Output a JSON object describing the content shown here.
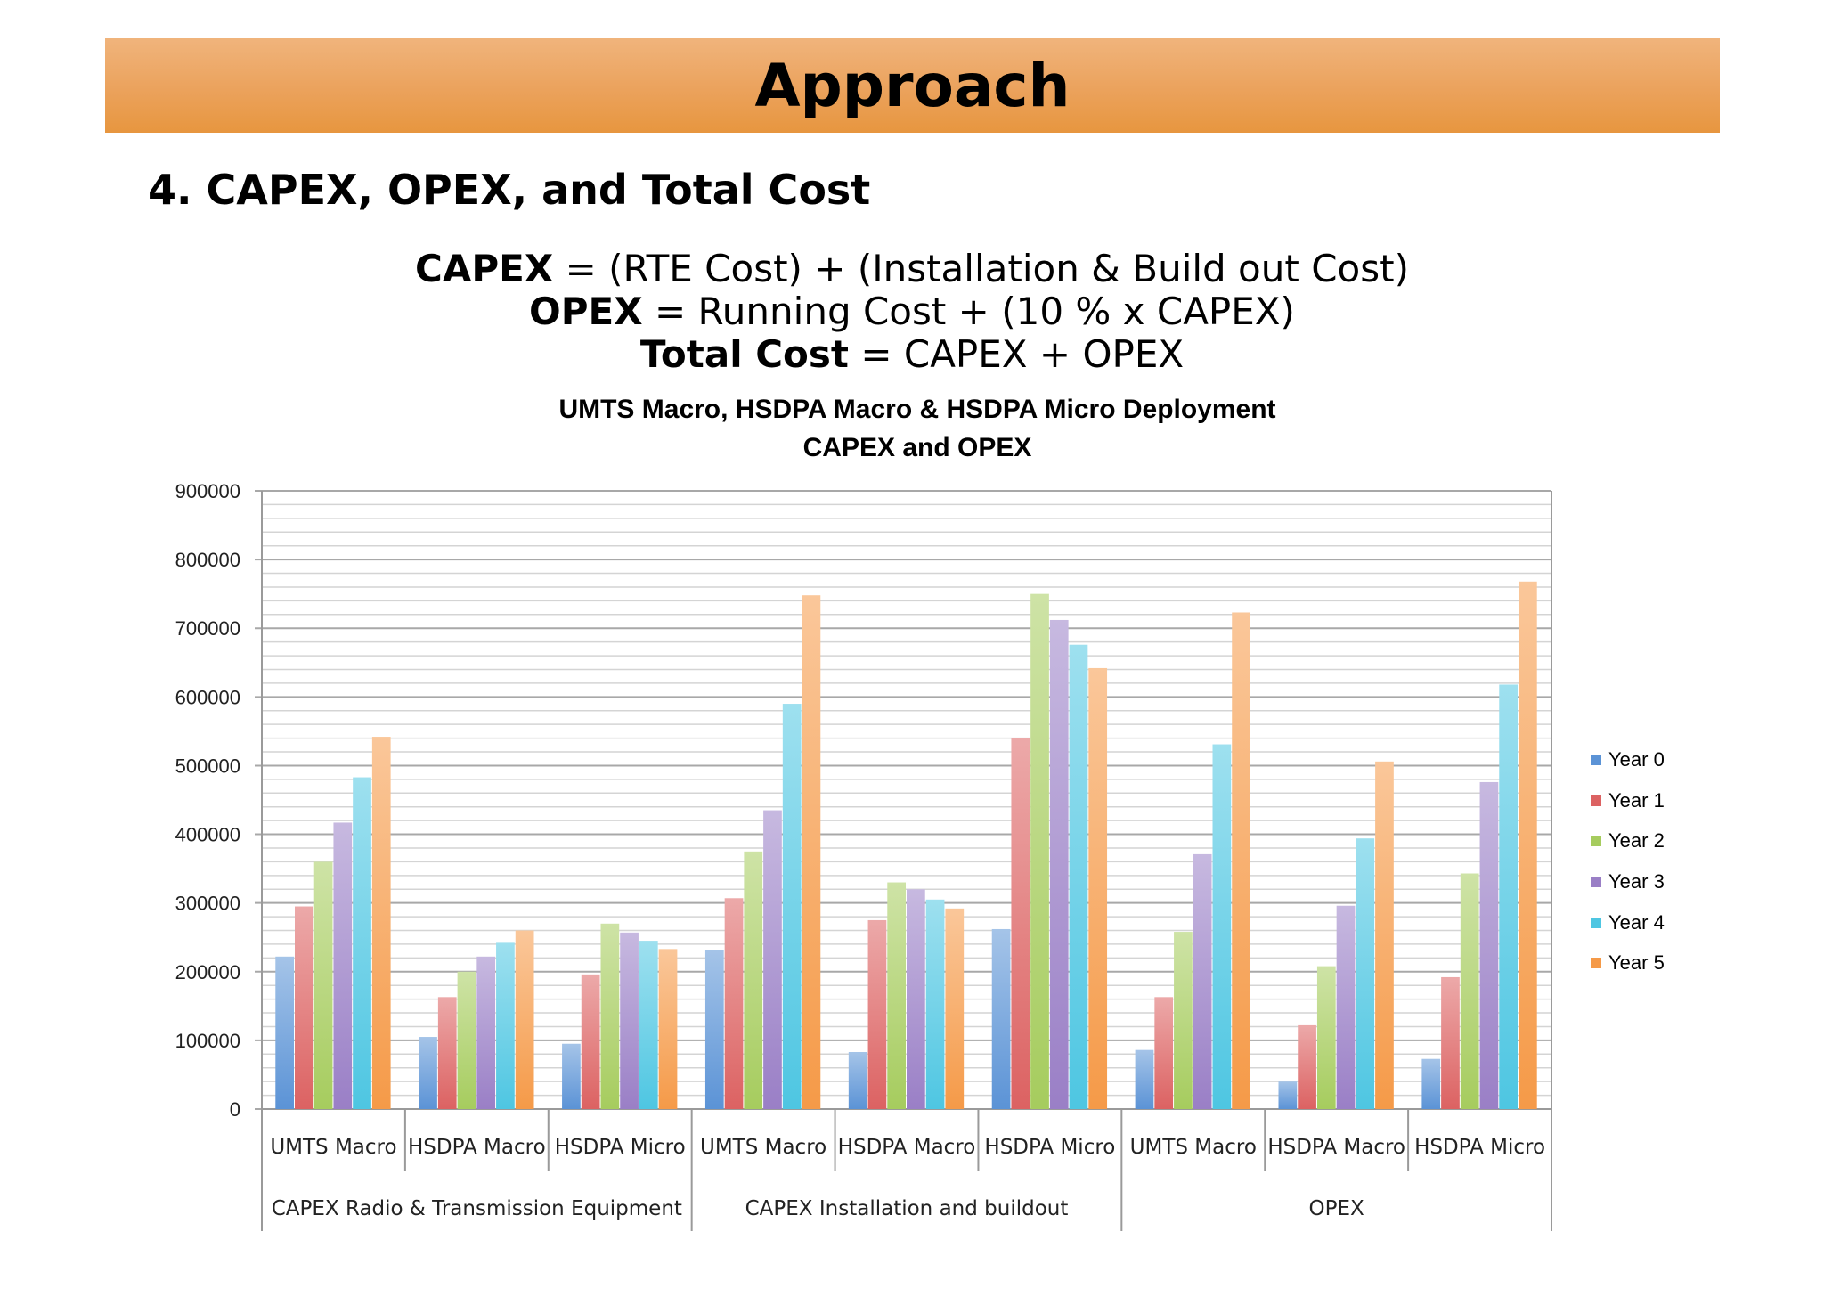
{
  "slide": {
    "title": "Approach",
    "subtitle": "4. CAPEX, OPEX, and Total Cost",
    "formulas": [
      {
        "term": "CAPEX",
        "rest": " = (RTE Cost) + (Installation & Build out Cost)"
      },
      {
        "term": "OPEX",
        "rest": " = Running Cost + (10 % x CAPEX)"
      },
      {
        "term": "Total Cost",
        "rest": " = CAPEX + OPEX"
      }
    ]
  },
  "chart_data": {
    "type": "bar",
    "title_lines": [
      "UMTS Macro, HSDPA Macro & HSDPA Micro Deployment",
      "CAPEX and OPEX"
    ],
    "categories": [
      "UMTS Macro",
      "HSDPA Macro",
      "HSDPA Micro",
      "UMTS Macro",
      "HSDPA Macro",
      "HSDPA Micro",
      "UMTS Macro",
      "HSDPA Macro",
      "HSDPA Micro"
    ],
    "groups": [
      {
        "label": "CAPEX Radio & Transmission Equipment",
        "span": 3
      },
      {
        "label": "CAPEX Installation and buildout",
        "span": 3
      },
      {
        "label": "OPEX",
        "span": 3
      }
    ],
    "ylim": [
      0,
      900000
    ],
    "yticks": [
      0,
      100000,
      200000,
      300000,
      400000,
      500000,
      600000,
      700000,
      800000,
      900000
    ],
    "grid": true,
    "minor_grid_step": 20000,
    "legend_position": "right",
    "series": [
      {
        "name": "Year 0",
        "color": "#5b93d6",
        "values": [
          222000,
          105000,
          95000,
          232000,
          83000,
          262000,
          86000,
          40000,
          73000
        ]
      },
      {
        "name": "Year 1",
        "color": "#dc6262",
        "values": [
          295000,
          163000,
          196000,
          307000,
          275000,
          540000,
          163000,
          122000,
          192000
        ]
      },
      {
        "name": "Year 2",
        "color": "#a6cc5e",
        "values": [
          360000,
          200000,
          270000,
          375000,
          330000,
          750000,
          258000,
          208000,
          343000
        ]
      },
      {
        "name": "Year 3",
        "color": "#9a7fc6",
        "values": [
          417000,
          222000,
          257000,
          435000,
          320000,
          712000,
          371000,
          296000,
          476000
        ]
      },
      {
        "name": "Year 4",
        "color": "#4ec6e2",
        "values": [
          483000,
          242000,
          245000,
          590000,
          305000,
          676000,
          531000,
          394000,
          618000
        ]
      },
      {
        "name": "Year 5",
        "color": "#f59a48",
        "values": [
          542000,
          260000,
          233000,
          748000,
          292000,
          642000,
          723000,
          506000,
          768000
        ]
      }
    ]
  }
}
